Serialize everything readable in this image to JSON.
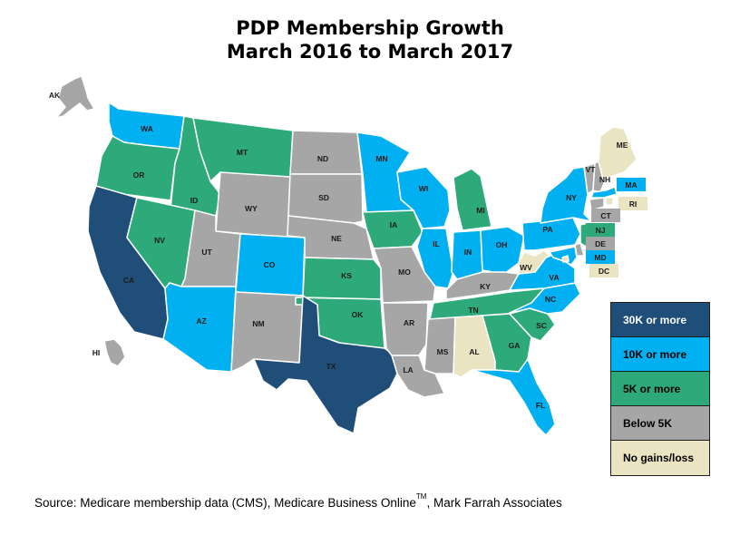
{
  "title": {
    "line1": "PDP Membership Growth",
    "line2": "March 2016 to March 2017"
  },
  "colors": {
    "30k_plus": "#1f4e79",
    "10k_plus": "#00b0f0",
    "5k_plus": "#2eaa7a",
    "below_5k": "#a6a6a6",
    "no_gain": "#ebe4c2"
  },
  "legend": [
    {
      "label": "30K or more",
      "category": "30k_plus"
    },
    {
      "label": "10K or more",
      "category": "10k_plus"
    },
    {
      "label": "5K or more",
      "category": "5k_plus"
    },
    {
      "label": "Below 5K",
      "category": "below_5k"
    },
    {
      "label": "No gains/loss",
      "category": "no_gain"
    }
  ],
  "states": [
    {
      "abbr": "WA",
      "category": "10k_plus"
    },
    {
      "abbr": "OR",
      "category": "5k_plus"
    },
    {
      "abbr": "CA",
      "category": "30k_plus"
    },
    {
      "abbr": "ID",
      "category": "5k_plus"
    },
    {
      "abbr": "NV",
      "category": "5k_plus"
    },
    {
      "abbr": "MT",
      "category": "5k_plus"
    },
    {
      "abbr": "WY",
      "category": "below_5k"
    },
    {
      "abbr": "UT",
      "category": "below_5k"
    },
    {
      "abbr": "AZ",
      "category": "10k_plus"
    },
    {
      "abbr": "CO",
      "category": "10k_plus"
    },
    {
      "abbr": "NM",
      "category": "below_5k"
    },
    {
      "abbr": "ND",
      "category": "below_5k"
    },
    {
      "abbr": "SD",
      "category": "below_5k"
    },
    {
      "abbr": "NE",
      "category": "below_5k"
    },
    {
      "abbr": "KS",
      "category": "5k_plus"
    },
    {
      "abbr": "OK",
      "category": "5k_plus"
    },
    {
      "abbr": "TX",
      "category": "30k_plus"
    },
    {
      "abbr": "MN",
      "category": "10k_plus"
    },
    {
      "abbr": "IA",
      "category": "5k_plus"
    },
    {
      "abbr": "MO",
      "category": "below_5k"
    },
    {
      "abbr": "AR",
      "category": "below_5k"
    },
    {
      "abbr": "LA",
      "category": "below_5k"
    },
    {
      "abbr": "WI",
      "category": "10k_plus"
    },
    {
      "abbr": "IL",
      "category": "10k_plus"
    },
    {
      "abbr": "MI",
      "category": "5k_plus"
    },
    {
      "abbr": "IN",
      "category": "10k_plus"
    },
    {
      "abbr": "OH",
      "category": "10k_plus"
    },
    {
      "abbr": "KY",
      "category": "below_5k"
    },
    {
      "abbr": "TN",
      "category": "5k_plus"
    },
    {
      "abbr": "MS",
      "category": "below_5k"
    },
    {
      "abbr": "AL",
      "category": "no_gain"
    },
    {
      "abbr": "GA",
      "category": "5k_plus"
    },
    {
      "abbr": "FL",
      "category": "10k_plus"
    },
    {
      "abbr": "SC",
      "category": "5k_plus"
    },
    {
      "abbr": "NC",
      "category": "10k_plus"
    },
    {
      "abbr": "VA",
      "category": "10k_plus"
    },
    {
      "abbr": "WV",
      "category": "no_gain"
    },
    {
      "abbr": "PA",
      "category": "10k_plus"
    },
    {
      "abbr": "NY",
      "category": "10k_plus"
    },
    {
      "abbr": "VT",
      "category": "below_5k"
    },
    {
      "abbr": "NH",
      "category": "below_5k"
    },
    {
      "abbr": "ME",
      "category": "no_gain"
    },
    {
      "abbr": "MA",
      "category": "10k_plus"
    },
    {
      "abbr": "RI",
      "category": "no_gain"
    },
    {
      "abbr": "CT",
      "category": "below_5k"
    },
    {
      "abbr": "NJ",
      "category": "5k_plus"
    },
    {
      "abbr": "DE",
      "category": "below_5k"
    },
    {
      "abbr": "MD",
      "category": "10k_plus"
    },
    {
      "abbr": "DC",
      "category": "no_gain"
    },
    {
      "abbr": "AK",
      "category": "below_5k"
    },
    {
      "abbr": "HI",
      "category": "below_5k"
    }
  ],
  "source": {
    "text_before": "Source: Medicare membership  data (CMS), Medicare Business Online",
    "trademark": "TM",
    "text_after": ", Mark Farrah Associates"
  }
}
